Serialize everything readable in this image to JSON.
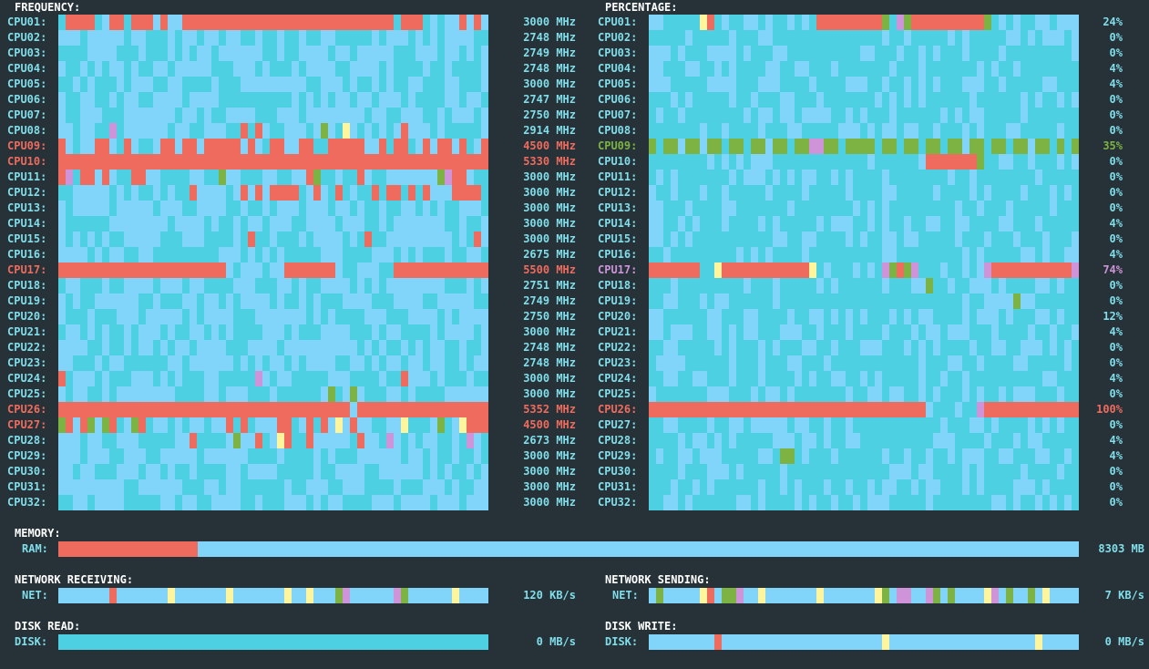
{
  "colors": {
    "background": "#263238",
    "title": "#ffffff",
    "label": "#80deea",
    "low_light": "#81d4fa",
    "low_dark": "#4dd0e1",
    "high": "#ef6b5e",
    "green": "#7cb342",
    "yellow": "#fff59d",
    "purple": "#ce93d8"
  },
  "frequency": {
    "title": "FREQUENCY:",
    "rows": [
      {
        "label": "CPU01:",
        "value": "3000 MHz",
        "state": "normal"
      },
      {
        "label": "CPU02:",
        "value": "2748 MHz",
        "state": "normal"
      },
      {
        "label": "CPU03:",
        "value": "2749 MHz",
        "state": "normal"
      },
      {
        "label": "CPU04:",
        "value": "2748 MHz",
        "state": "normal"
      },
      {
        "label": "CPU05:",
        "value": "3000 MHz",
        "state": "normal"
      },
      {
        "label": "CPU06:",
        "value": "2747 MHz",
        "state": "normal"
      },
      {
        "label": "CPU07:",
        "value": "2750 MHz",
        "state": "normal"
      },
      {
        "label": "CPU08:",
        "value": "2914 MHz",
        "state": "normal"
      },
      {
        "label": "CPU09:",
        "value": "4500 MHz",
        "state": "high"
      },
      {
        "label": "CPU10:",
        "value": "5330 MHz",
        "state": "high"
      },
      {
        "label": "CPU11:",
        "value": "3000 MHz",
        "state": "normal"
      },
      {
        "label": "CPU12:",
        "value": "3000 MHz",
        "state": "normal"
      },
      {
        "label": "CPU13:",
        "value": "3000 MHz",
        "state": "normal"
      },
      {
        "label": "CPU14:",
        "value": "3000 MHz",
        "state": "normal"
      },
      {
        "label": "CPU15:",
        "value": "3000 MHz",
        "state": "normal"
      },
      {
        "label": "CPU16:",
        "value": "2675 MHz",
        "state": "normal"
      },
      {
        "label": "CPU17:",
        "value": "5500 MHz",
        "state": "high"
      },
      {
        "label": "CPU18:",
        "value": "2751 MHz",
        "state": "normal"
      },
      {
        "label": "CPU19:",
        "value": "2749 MHz",
        "state": "normal"
      },
      {
        "label": "CPU20:",
        "value": "2750 MHz",
        "state": "normal"
      },
      {
        "label": "CPU21:",
        "value": "3000 MHz",
        "state": "normal"
      },
      {
        "label": "CPU22:",
        "value": "2748 MHz",
        "state": "normal"
      },
      {
        "label": "CPU23:",
        "value": "2748 MHz",
        "state": "normal"
      },
      {
        "label": "CPU24:",
        "value": "3000 MHz",
        "state": "normal"
      },
      {
        "label": "CPU25:",
        "value": "3000 MHz",
        "state": "normal"
      },
      {
        "label": "CPU26:",
        "value": "5352 MHz",
        "state": "high"
      },
      {
        "label": "CPU27:",
        "value": "4500 MHz",
        "state": "high"
      },
      {
        "label": "CPU28:",
        "value": "2673 MHz",
        "state": "normal"
      },
      {
        "label": "CPU29:",
        "value": "3000 MHz",
        "state": "normal"
      },
      {
        "label": "CPU30:",
        "value": "3000 MHz",
        "state": "normal"
      },
      {
        "label": "CPU31:",
        "value": "3000 MHz",
        "state": "normal"
      },
      {
        "label": "CPU32:",
        "value": "3000 MHz",
        "state": "normal"
      }
    ]
  },
  "percentage": {
    "title": "PERCENTAGE:",
    "rows": [
      {
        "label": "CPU01:",
        "value": "24%",
        "state": "normal"
      },
      {
        "label": "CPU02:",
        "value": "0%",
        "state": "normal"
      },
      {
        "label": "CPU03:",
        "value": "0%",
        "state": "normal"
      },
      {
        "label": "CPU04:",
        "value": "4%",
        "state": "normal"
      },
      {
        "label": "CPU05:",
        "value": "4%",
        "state": "normal"
      },
      {
        "label": "CPU06:",
        "value": "0%",
        "state": "normal"
      },
      {
        "label": "CPU07:",
        "value": "0%",
        "state": "normal"
      },
      {
        "label": "CPU08:",
        "value": "0%",
        "state": "normal"
      },
      {
        "label": "CPU09:",
        "value": "35%",
        "state": "mid"
      },
      {
        "label": "CPU10:",
        "value": "0%",
        "state": "normal"
      },
      {
        "label": "CPU11:",
        "value": "0%",
        "state": "normal"
      },
      {
        "label": "CPU12:",
        "value": "0%",
        "state": "normal"
      },
      {
        "label": "CPU13:",
        "value": "0%",
        "state": "normal"
      },
      {
        "label": "CPU14:",
        "value": "4%",
        "state": "normal"
      },
      {
        "label": "CPU15:",
        "value": "0%",
        "state": "normal"
      },
      {
        "label": "CPU16:",
        "value": "4%",
        "state": "normal"
      },
      {
        "label": "CPU17:",
        "value": "74%",
        "state": "warm"
      },
      {
        "label": "CPU18:",
        "value": "0%",
        "state": "normal"
      },
      {
        "label": "CPU19:",
        "value": "0%",
        "state": "normal"
      },
      {
        "label": "CPU20:",
        "value": "12%",
        "state": "normal"
      },
      {
        "label": "CPU21:",
        "value": "4%",
        "state": "normal"
      },
      {
        "label": "CPU22:",
        "value": "0%",
        "state": "normal"
      },
      {
        "label": "CPU23:",
        "value": "0%",
        "state": "normal"
      },
      {
        "label": "CPU24:",
        "value": "4%",
        "state": "normal"
      },
      {
        "label": "CPU25:",
        "value": "0%",
        "state": "normal"
      },
      {
        "label": "CPU26:",
        "value": "100%",
        "state": "high"
      },
      {
        "label": "CPU27:",
        "value": "0%",
        "state": "normal"
      },
      {
        "label": "CPU28:",
        "value": "4%",
        "state": "normal"
      },
      {
        "label": "CPU29:",
        "value": "4%",
        "state": "normal"
      },
      {
        "label": "CPU30:",
        "value": "0%",
        "state": "normal"
      },
      {
        "label": "CPU31:",
        "value": "0%",
        "state": "normal"
      },
      {
        "label": "CPU32:",
        "value": "0%",
        "state": "normal"
      }
    ]
  },
  "memory": {
    "title": "MEMORY:",
    "label": "RAM:",
    "value": "8303 MB",
    "usage_fraction": 0.137
  },
  "network_receiving": {
    "title": "NETWORK RECEIVING:",
    "label": "NET:",
    "value": "120 KB/s"
  },
  "network_sending": {
    "title": "NETWORK SENDING:",
    "label": "NET:",
    "value": "7 KB/s"
  },
  "disk_read": {
    "title": "DISK READ:",
    "label": "DISK:",
    "value": "0 MB/s"
  },
  "disk_write": {
    "title": "DISK WRITE:",
    "label": "DISK:",
    "value": "0 MB/s"
  }
}
